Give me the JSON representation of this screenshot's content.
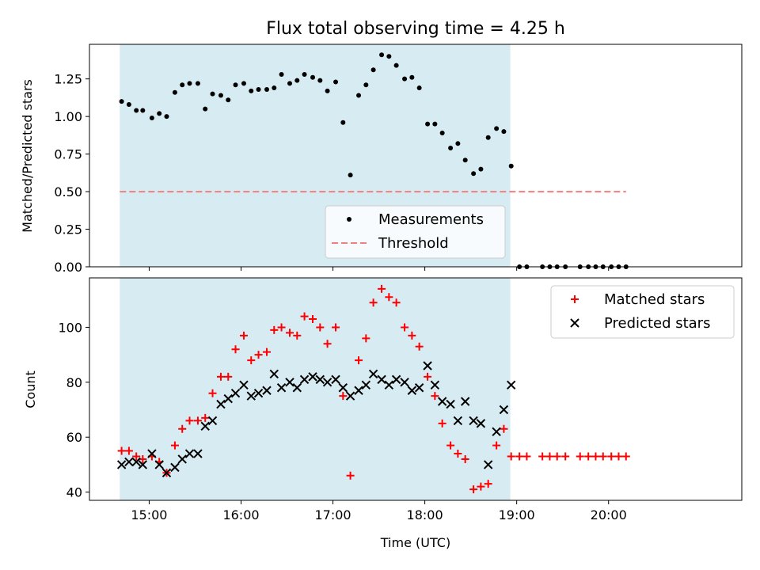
{
  "chart_data": [
    {
      "panel": "top",
      "type": "scatter",
      "title": "Flux total observing time = 4.25 h",
      "xlabel": "",
      "ylabel": "Matched/Predicted stars",
      "ylim": [
        0,
        1.48
      ],
      "yticks": [
        0.0,
        0.25,
        0.5,
        0.75,
        1.0,
        1.25
      ],
      "ytick_labels": [
        "0.00",
        "0.25",
        "0.50",
        "0.75",
        "1.00",
        "1.25"
      ],
      "xlim_hours": [
        14.35,
        21.45
      ],
      "xticks_hours": [
        15,
        16,
        17,
        18,
        19,
        20
      ],
      "observing_window_hours": [
        14.68,
        18.93
      ],
      "grid": false,
      "legend_position": "lower-center",
      "series": [
        {
          "name": "Measurements",
          "color": "#000000",
          "marker": "dot",
          "x": [
            14.7,
            14.78,
            14.86,
            14.93,
            15.03,
            15.11,
            15.19,
            15.28,
            15.36,
            15.44,
            15.53,
            15.61,
            15.69,
            15.78,
            15.86,
            15.94,
            16.03,
            16.11,
            16.19,
            16.28,
            16.36,
            16.44,
            16.53,
            16.61,
            16.69,
            16.78,
            16.86,
            16.94,
            17.03,
            17.11,
            17.19,
            17.28,
            17.36,
            17.44,
            17.53,
            17.61,
            17.69,
            17.78,
            17.86,
            17.94,
            18.03,
            18.11,
            18.19,
            18.28,
            18.36,
            18.44,
            18.53,
            18.61,
            18.69,
            18.78,
            18.86,
            18.94,
            19.03,
            19.11,
            19.28,
            19.36,
            19.44,
            19.53,
            19.69,
            19.78,
            19.86,
            19.94,
            20.03,
            20.11,
            20.19
          ],
          "y": [
            1.1,
            1.08,
            1.04,
            1.04,
            0.99,
            1.02,
            1.0,
            1.16,
            1.21,
            1.22,
            1.22,
            1.05,
            1.15,
            1.14,
            1.11,
            1.21,
            1.22,
            1.17,
            1.18,
            1.18,
            1.19,
            1.28,
            1.22,
            1.24,
            1.28,
            1.26,
            1.24,
            1.17,
            1.23,
            0.96,
            0.61,
            1.14,
            1.21,
            1.31,
            1.41,
            1.4,
            1.34,
            1.25,
            1.26,
            1.19,
            0.95,
            0.95,
            0.89,
            0.79,
            0.82,
            0.71,
            0.62,
            0.65,
            0.86,
            0.92,
            0.9,
            0.67,
            0.0,
            0.0,
            0.0,
            0.0,
            0.0,
            0.0,
            0.0,
            0.0,
            0.0,
            0.0,
            0.0,
            0.0,
            0.0
          ]
        },
        {
          "name": "Threshold",
          "color": "#f08080",
          "style": "dashed",
          "x": [
            14.68,
            20.19
          ],
          "y": [
            0.5,
            0.5
          ]
        }
      ]
    },
    {
      "panel": "bottom",
      "type": "scatter",
      "title": "",
      "xlabel": "Time (UTC)",
      "ylabel": "Count",
      "ylim": [
        37,
        118
      ],
      "yticks": [
        40,
        60,
        80,
        100
      ],
      "ytick_labels": [
        "40",
        "60",
        "80",
        "100"
      ],
      "xlim_hours": [
        14.35,
        21.45
      ],
      "xticks_hours": [
        15,
        16,
        17,
        18,
        19,
        20
      ],
      "xtick_labels": [
        "15:00",
        "16:00",
        "17:00",
        "18:00",
        "19:00",
        "20:00"
      ],
      "observing_window_hours": [
        14.68,
        18.93
      ],
      "grid": false,
      "legend_position": "top-right",
      "series": [
        {
          "name": "Matched stars",
          "color": "#ff0000",
          "marker": "plus",
          "x": [
            14.7,
            14.78,
            14.86,
            14.93,
            15.03,
            15.11,
            15.19,
            15.28,
            15.36,
            15.44,
            15.53,
            15.61,
            15.69,
            15.78,
            15.86,
            15.94,
            16.03,
            16.11,
            16.19,
            16.28,
            16.36,
            16.44,
            16.53,
            16.61,
            16.69,
            16.78,
            16.86,
            16.94,
            17.03,
            17.11,
            17.19,
            17.28,
            17.36,
            17.44,
            17.53,
            17.61,
            17.69,
            17.78,
            17.86,
            17.94,
            18.03,
            18.11,
            18.19,
            18.28,
            18.36,
            18.44,
            18.53,
            18.61,
            18.69,
            18.78,
            18.86,
            18.94,
            19.03,
            19.11,
            19.28,
            19.36,
            19.44,
            19.53,
            19.69,
            19.78,
            19.86,
            19.94,
            20.03,
            20.11,
            20.19
          ],
          "y": [
            55,
            55,
            53,
            52,
            53,
            51,
            47,
            57,
            63,
            66,
            66,
            67,
            76,
            82,
            82,
            92,
            97,
            88,
            90,
            91,
            99,
            100,
            98,
            97,
            104,
            103,
            100,
            94,
            100,
            75,
            46,
            88,
            96,
            109,
            114,
            111,
            109,
            100,
            97,
            93,
            82,
            75,
            65,
            57,
            54,
            52,
            41,
            42,
            43,
            57,
            63,
            53,
            53,
            53,
            53,
            53,
            53,
            53,
            53,
            53,
            53,
            53,
            53,
            53,
            53
          ]
        },
        {
          "name": "Predicted stars",
          "color": "#000000",
          "marker": "cross",
          "x": [
            14.7,
            14.78,
            14.86,
            14.93,
            15.03,
            15.11,
            15.19,
            15.28,
            15.36,
            15.44,
            15.53,
            15.61,
            15.69,
            15.78,
            15.86,
            15.94,
            16.03,
            16.11,
            16.19,
            16.28,
            16.36,
            16.44,
            16.53,
            16.61,
            16.69,
            16.78,
            16.86,
            16.94,
            17.03,
            17.11,
            17.19,
            17.28,
            17.36,
            17.44,
            17.53,
            17.61,
            17.69,
            17.78,
            17.86,
            17.94,
            18.03,
            18.11,
            18.19,
            18.28,
            18.36,
            18.44,
            18.53,
            18.61,
            18.69,
            18.78,
            18.86,
            18.94
          ],
          "y": [
            50,
            51,
            51,
            50,
            54,
            50,
            47,
            49,
            52,
            54,
            54,
            64,
            66,
            72,
            74,
            76,
            79,
            75,
            76,
            77,
            83,
            78,
            80,
            78,
            81,
            82,
            81,
            80,
            81,
            78,
            75,
            77,
            79,
            83,
            81,
            79,
            81,
            80,
            77,
            78,
            86,
            79,
            73,
            72,
            66,
            73,
            66,
            65,
            50,
            62,
            70,
            79
          ]
        }
      ]
    }
  ]
}
